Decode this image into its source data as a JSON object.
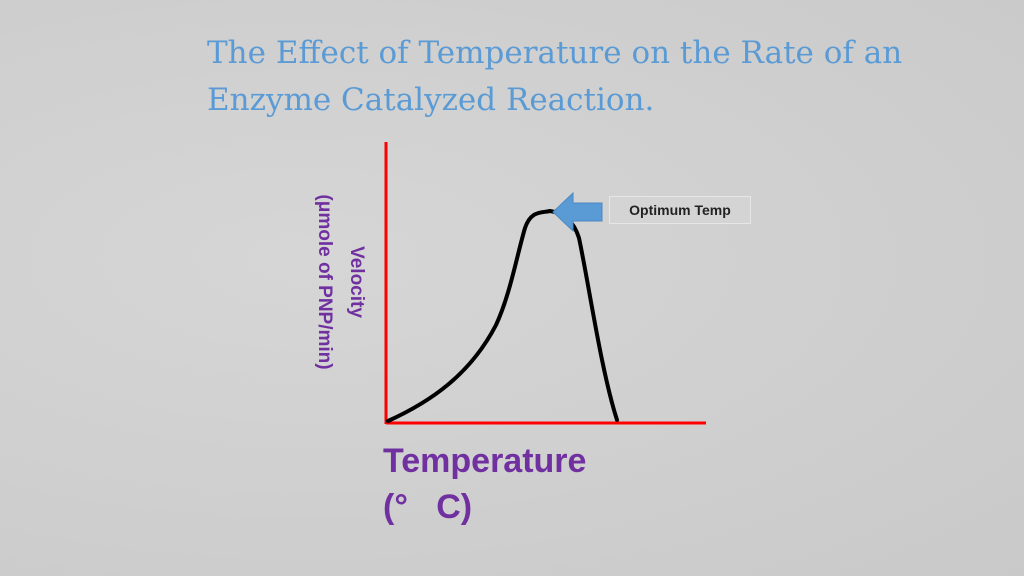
{
  "title": {
    "line1": "The Effect of Temperature on the Rate of an",
    "line2": "Enzyme Catalyzed Reaction."
  },
  "y_axis": {
    "line1": "Velocity",
    "line2": "(μmole of PNP/min)"
  },
  "x_axis": {
    "line1": "Temperature",
    "line2": "(°   C)"
  },
  "callout": {
    "label": "Optimum Temp"
  },
  "colors": {
    "title": "#5b9bd5",
    "axis_label": "#7030a0",
    "axes": "#ff0000",
    "curve": "#000000",
    "arrow": "#5b9bd5"
  }
}
